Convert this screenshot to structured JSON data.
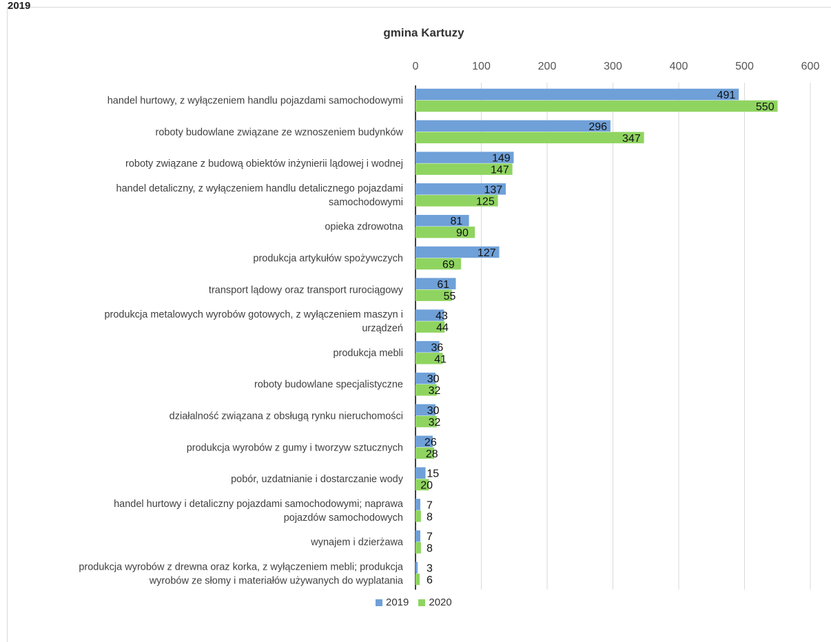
{
  "header": {
    "cut_label": "2019"
  },
  "chart_data": {
    "type": "bar",
    "orientation": "horizontal",
    "title": "gmina Kartuzy",
    "xlabel": "",
    "ylabel": "",
    "xlim": [
      0,
      600
    ],
    "x_ticks": [
      0,
      100,
      200,
      300,
      400,
      500,
      600
    ],
    "x_tick_labels": [
      "0",
      "100",
      "200",
      "300",
      "400",
      "500",
      "600"
    ],
    "axis_position": "top",
    "grid": true,
    "legend_position": "bottom",
    "categories": [
      [
        "handel hurtowy, z wyłączeniem handlu pojazdami samochodowymi"
      ],
      [
        "roboty budowlane związane ze wznoszeniem budynków"
      ],
      [
        "roboty związane z budową obiektów inżynierii lądowej i wodnej"
      ],
      [
        "handel detaliczny, z wyłączeniem handlu detalicznego pojazdami",
        "samochodowymi"
      ],
      [
        "opieka zdrowotna"
      ],
      [
        "produkcja artykułów spożywczych"
      ],
      [
        "transport lądowy oraz transport rurociągowy"
      ],
      [
        "produkcja metalowych wyrobów gotowych, z wyłączeniem maszyn i",
        "urządzeń"
      ],
      [
        "produkcja mebli"
      ],
      [
        "roboty budowlane specjalistyczne"
      ],
      [
        "działalność związana z obsługą rynku nieruchomości"
      ],
      [
        "produkcja wyrobów z gumy i tworzyw sztucznych"
      ],
      [
        "pobór, uzdatnianie i dostarczanie wody"
      ],
      [
        "handel hurtowy i detaliczny pojazdami samochodowymi; naprawa",
        "pojazdów samochodowych"
      ],
      [
        "wynajem i dzierżawa"
      ],
      [
        "produkcja wyrobów z drewna oraz korka, z wyłączeniem mebli; produkcja",
        "wyrobów ze słomy i materiałów używanych do wyplatania"
      ]
    ],
    "series": [
      {
        "name": "2019",
        "color": "#6fa0d8",
        "values": [
          491,
          296,
          149,
          137,
          81,
          127,
          61,
          43,
          36,
          30,
          30,
          26,
          15,
          7,
          7,
          3
        ]
      },
      {
        "name": "2020",
        "color": "#8fd460",
        "values": [
          550,
          347,
          147,
          125,
          90,
          69,
          55,
          44,
          41,
          32,
          32,
          28,
          20,
          8,
          8,
          6
        ]
      }
    ]
  }
}
